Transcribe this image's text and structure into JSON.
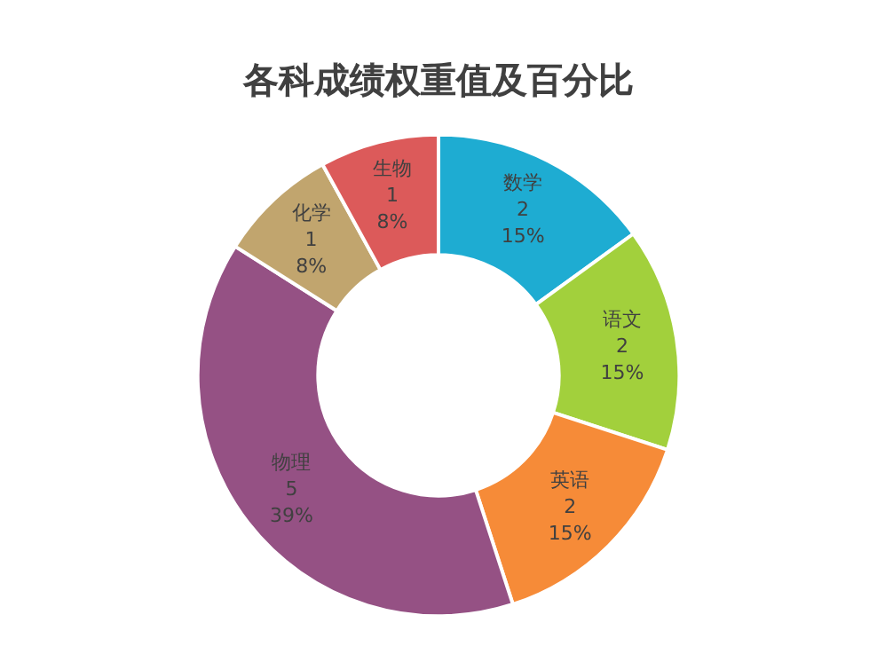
{
  "chart_data": {
    "type": "donut",
    "title": "各科成绩权重值及百分比",
    "categories": [
      "数学",
      "语文",
      "英语",
      "物理",
      "化学",
      "生物"
    ],
    "values": [
      15,
      15,
      15,
      39,
      8,
      8
    ],
    "value_labels": [
      "2\n15%",
      "2\n15%",
      "2\n15%",
      "5\n39%",
      "1\n8%",
      "1\n8%"
    ],
    "colors": [
      "#1eacd2",
      "#a2d03c",
      "#f68b38",
      "#955184",
      "#c1a56e",
      "#dc5a5a"
    ]
  }
}
